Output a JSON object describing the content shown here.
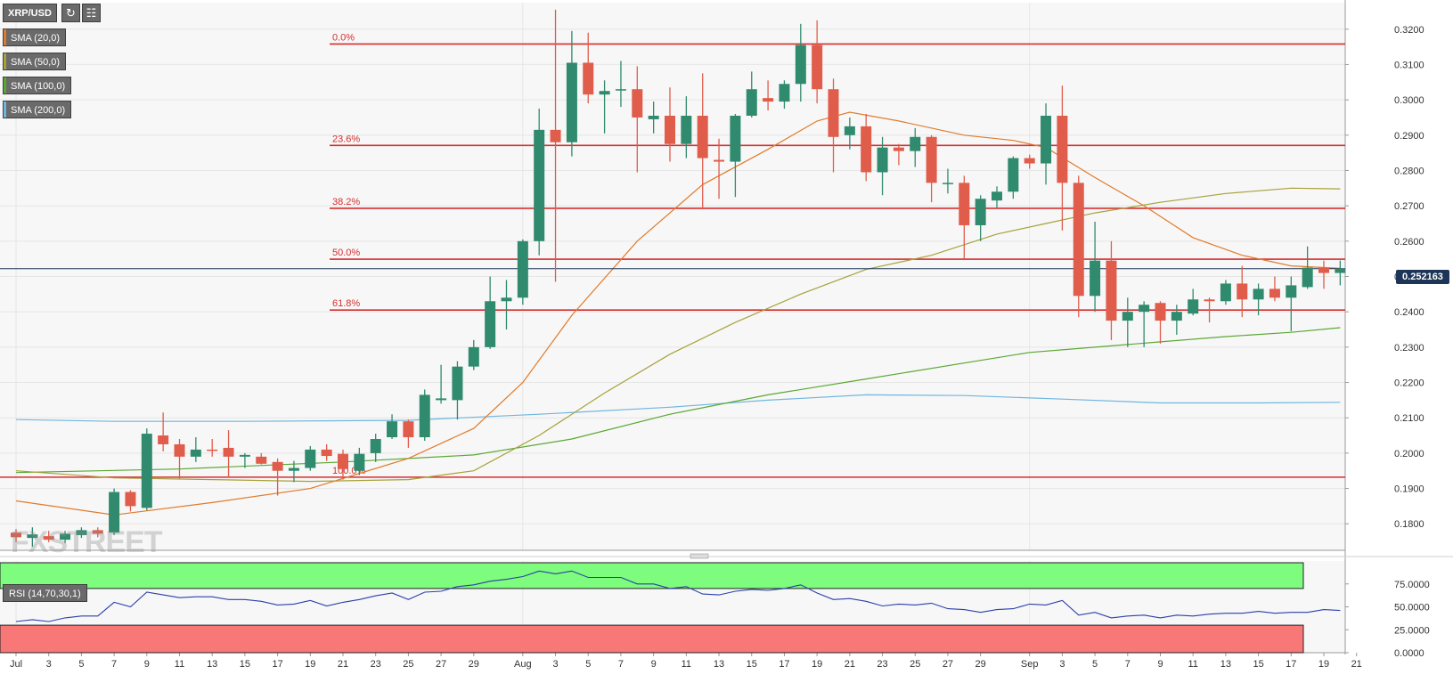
{
  "symbol": "XRP/USD",
  "toolbar": {
    "refresh_icon": "refresh-icon",
    "indicators_icon": "bar-chart-icon"
  },
  "indicators": [
    {
      "label": "SMA (20,0)",
      "color": "#e07b2b"
    },
    {
      "label": "SMA (50,0)",
      "color": "#a7a13a"
    },
    {
      "label": "SMA (100,0)",
      "color": "#5aa832"
    },
    {
      "label": "SMA (200,0)",
      "color": "#6fb6df"
    }
  ],
  "rsi": {
    "label": "RSI (14,70,30,1)",
    "overbought": 70,
    "oversold": 30,
    "ticks": [
      "75.0000",
      "50.0000",
      "25.0000",
      "0.0000"
    ]
  },
  "current_price": "0.252163",
  "watermark": "FXSTREET",
  "colors": {
    "up": "#2f8a6e",
    "down": "#e05c4b",
    "fib": "#d32f2f",
    "rsi_line": "#2b3fa8",
    "overbought_zone": "#7dfc7d",
    "oversold_zone": "#f87878"
  },
  "chart_data": {
    "type": "candlestick",
    "title": "XRP/USD",
    "ylim": [
      0.1725,
      0.3275
    ],
    "y_ticks": [
      "0.3200",
      "0.3100",
      "0.3000",
      "0.2900",
      "0.2800",
      "0.2700",
      "0.2600",
      "0.2500",
      "0.2400",
      "0.2300",
      "0.2200",
      "0.2100",
      "0.2000",
      "0.1900",
      "0.1800"
    ],
    "x_ticks": [
      {
        "day": 0,
        "label": "Jul"
      },
      {
        "day": 2,
        "label": "3"
      },
      {
        "day": 4,
        "label": "5"
      },
      {
        "day": 6,
        "label": "7"
      },
      {
        "day": 8,
        "label": "9"
      },
      {
        "day": 10,
        "label": "11"
      },
      {
        "day": 12,
        "label": "13"
      },
      {
        "day": 14,
        "label": "15"
      },
      {
        "day": 16,
        "label": "17"
      },
      {
        "day": 18,
        "label": "19"
      },
      {
        "day": 20,
        "label": "21"
      },
      {
        "day": 22,
        "label": "23"
      },
      {
        "day": 24,
        "label": "25"
      },
      {
        "day": 26,
        "label": "27"
      },
      {
        "day": 28,
        "label": "29"
      },
      {
        "day": 31,
        "label": "Aug"
      },
      {
        "day": 33,
        "label": "3"
      },
      {
        "day": 35,
        "label": "5"
      },
      {
        "day": 37,
        "label": "7"
      },
      {
        "day": 39,
        "label": "9"
      },
      {
        "day": 41,
        "label": "11"
      },
      {
        "day": 43,
        "label": "13"
      },
      {
        "day": 45,
        "label": "15"
      },
      {
        "day": 47,
        "label": "17"
      },
      {
        "day": 49,
        "label": "19"
      },
      {
        "day": 51,
        "label": "21"
      },
      {
        "day": 53,
        "label": "23"
      },
      {
        "day": 55,
        "label": "25"
      },
      {
        "day": 57,
        "label": "27"
      },
      {
        "day": 59,
        "label": "29"
      },
      {
        "day": 62,
        "label": "Sep"
      },
      {
        "day": 64,
        "label": "3"
      },
      {
        "day": 66,
        "label": "5"
      },
      {
        "day": 68,
        "label": "7"
      },
      {
        "day": 70,
        "label": "9"
      },
      {
        "day": 72,
        "label": "11"
      },
      {
        "day": 74,
        "label": "13"
      },
      {
        "day": 76,
        "label": "15"
      },
      {
        "day": 78,
        "label": "17"
      },
      {
        "day": 80,
        "label": "19"
      },
      {
        "day": 82,
        "label": "21"
      }
    ],
    "candles": [
      [
        0.1775,
        0.1785,
        0.1748,
        0.1762
      ],
      [
        0.176,
        0.179,
        0.1735,
        0.177
      ],
      [
        0.1765,
        0.178,
        0.1748,
        0.1755
      ],
      [
        0.1755,
        0.178,
        0.1745,
        0.1772
      ],
      [
        0.1768,
        0.179,
        0.176,
        0.1782
      ],
      [
        0.1782,
        0.179,
        0.1762,
        0.1772
      ],
      [
        0.1775,
        0.19,
        0.1768,
        0.189
      ],
      [
        0.189,
        0.1895,
        0.1835,
        0.185
      ],
      [
        0.1845,
        0.207,
        0.1838,
        0.2055
      ],
      [
        0.205,
        0.2115,
        0.2005,
        0.2025
      ],
      [
        0.2025,
        0.204,
        0.1928,
        0.199
      ],
      [
        0.199,
        0.2045,
        0.1975,
        0.201
      ],
      [
        0.201,
        0.204,
        0.199,
        0.2008
      ],
      [
        0.2015,
        0.2065,
        0.193,
        0.199
      ],
      [
        0.199,
        0.2,
        0.1958,
        0.1995
      ],
      [
        0.199,
        0.2,
        0.1968,
        0.197
      ],
      [
        0.1975,
        0.1985,
        0.188,
        0.195
      ],
      [
        0.195,
        0.1978,
        0.1918,
        0.1958
      ],
      [
        0.1958,
        0.202,
        0.195,
        0.201
      ],
      [
        0.201,
        0.2025,
        0.1978,
        0.1992
      ],
      [
        0.1998,
        0.201,
        0.1925,
        0.1955
      ],
      [
        0.195,
        0.2015,
        0.1938,
        0.1998
      ],
      [
        0.2,
        0.2055,
        0.1975,
        0.204
      ],
      [
        0.2045,
        0.211,
        0.204,
        0.209
      ],
      [
        0.209,
        0.2095,
        0.2015,
        0.2045
      ],
      [
        0.2045,
        0.218,
        0.2035,
        0.2165
      ],
      [
        0.215,
        0.225,
        0.214,
        0.2155
      ],
      [
        0.215,
        0.226,
        0.2095,
        0.2245
      ],
      [
        0.2245,
        0.232,
        0.2235,
        0.23
      ],
      [
        0.23,
        0.25,
        0.2295,
        0.243
      ],
      [
        0.243,
        0.249,
        0.235,
        0.244
      ],
      [
        0.244,
        0.2605,
        0.242,
        0.26
      ],
      [
        0.26,
        0.2975,
        0.256,
        0.2915
      ],
      [
        0.2915,
        0.3255,
        0.2485,
        0.288
      ],
      [
        0.288,
        0.3195,
        0.284,
        0.3105
      ],
      [
        0.3105,
        0.319,
        0.299,
        0.3015
      ],
      [
        0.3015,
        0.3055,
        0.2905,
        0.3025
      ],
      [
        0.303,
        0.311,
        0.298,
        0.303
      ],
      [
        0.303,
        0.3095,
        0.2795,
        0.295
      ],
      [
        0.2945,
        0.2995,
        0.2905,
        0.2955
      ],
      [
        0.2955,
        0.3035,
        0.2825,
        0.2875
      ],
      [
        0.2875,
        0.301,
        0.2835,
        0.2955
      ],
      [
        0.2955,
        0.3075,
        0.269,
        0.2835
      ],
      [
        0.283,
        0.289,
        0.272,
        0.2825
      ],
      [
        0.2825,
        0.296,
        0.2725,
        0.2955
      ],
      [
        0.2955,
        0.308,
        0.295,
        0.303
      ],
      [
        0.3005,
        0.3055,
        0.297,
        0.2995
      ],
      [
        0.2995,
        0.3055,
        0.2975,
        0.3045
      ],
      [
        0.3045,
        0.3215,
        0.2995,
        0.3155
      ],
      [
        0.3155,
        0.3225,
        0.299,
        0.303
      ],
      [
        0.303,
        0.306,
        0.2795,
        0.2895
      ],
      [
        0.29,
        0.295,
        0.286,
        0.2925
      ],
      [
        0.2925,
        0.296,
        0.277,
        0.2795
      ],
      [
        0.2795,
        0.2895,
        0.273,
        0.2865
      ],
      [
        0.2865,
        0.2875,
        0.2815,
        0.2855
      ],
      [
        0.2855,
        0.292,
        0.281,
        0.2895
      ],
      [
        0.2895,
        0.29,
        0.271,
        0.2765
      ],
      [
        0.2765,
        0.2805,
        0.2735,
        0.2765
      ],
      [
        0.2765,
        0.2785,
        0.255,
        0.2645
      ],
      [
        0.2645,
        0.273,
        0.26,
        0.272
      ],
      [
        0.2715,
        0.2755,
        0.2695,
        0.274
      ],
      [
        0.274,
        0.284,
        0.272,
        0.2835
      ],
      [
        0.2835,
        0.2845,
        0.2805,
        0.282
      ],
      [
        0.282,
        0.299,
        0.276,
        0.2955
      ],
      [
        0.2955,
        0.304,
        0.263,
        0.2765
      ],
      [
        0.2765,
        0.2785,
        0.2385,
        0.2445
      ],
      [
        0.2445,
        0.2655,
        0.24,
        0.2545
      ],
      [
        0.2545,
        0.26,
        0.232,
        0.2375
      ],
      [
        0.2375,
        0.244,
        0.23,
        0.24
      ],
      [
        0.24,
        0.243,
        0.23,
        0.242
      ],
      [
        0.2425,
        0.243,
        0.231,
        0.2375
      ],
      [
        0.2375,
        0.242,
        0.2335,
        0.24
      ],
      [
        0.2395,
        0.2465,
        0.239,
        0.2435
      ],
      [
        0.2435,
        0.244,
        0.237,
        0.243
      ],
      [
        0.243,
        0.249,
        0.242,
        0.248
      ],
      [
        0.248,
        0.253,
        0.2385,
        0.2435
      ],
      [
        0.2435,
        0.248,
        0.239,
        0.2465
      ],
      [
        0.2465,
        0.25,
        0.243,
        0.244
      ],
      [
        0.244,
        0.25,
        0.2345,
        0.2475
      ],
      [
        0.247,
        0.2585,
        0.2465,
        0.2525
      ],
      [
        0.2525,
        0.2545,
        0.2465,
        0.251
      ],
      [
        0.251,
        0.2545,
        0.2475,
        0.2522
      ]
    ],
    "sma20": [
      [
        0,
        0.1865
      ],
      [
        6,
        0.1825
      ],
      [
        12,
        0.186
      ],
      [
        18,
        0.19
      ],
      [
        24,
        0.1985
      ],
      [
        28,
        0.207
      ],
      [
        31,
        0.22
      ],
      [
        34,
        0.239
      ],
      [
        38,
        0.26
      ],
      [
        42,
        0.276
      ],
      [
        46,
        0.286
      ],
      [
        49,
        0.294
      ],
      [
        51,
        0.2965
      ],
      [
        54,
        0.294
      ],
      [
        58,
        0.29
      ],
      [
        61,
        0.2885
      ],
      [
        63,
        0.2865
      ],
      [
        66,
        0.278
      ],
      [
        69,
        0.27
      ],
      [
        72,
        0.261
      ],
      [
        75,
        0.256
      ],
      [
        78,
        0.253
      ],
      [
        81,
        0.2523
      ]
    ],
    "sma50": [
      [
        0,
        0.195
      ],
      [
        6,
        0.193
      ],
      [
        12,
        0.1925
      ],
      [
        18,
        0.192
      ],
      [
        24,
        0.1925
      ],
      [
        28,
        0.195
      ],
      [
        32,
        0.205
      ],
      [
        36,
        0.217
      ],
      [
        40,
        0.228
      ],
      [
        44,
        0.237
      ],
      [
        48,
        0.245
      ],
      [
        52,
        0.252
      ],
      [
        56,
        0.256
      ],
      [
        60,
        0.262
      ],
      [
        63,
        0.265
      ],
      [
        66,
        0.268
      ],
      [
        70,
        0.271
      ],
      [
        74,
        0.2735
      ],
      [
        78,
        0.275
      ],
      [
        81,
        0.2748
      ]
    ],
    "sma100": [
      [
        0,
        0.1945
      ],
      [
        10,
        0.1955
      ],
      [
        20,
        0.1975
      ],
      [
        28,
        0.1995
      ],
      [
        34,
        0.204
      ],
      [
        40,
        0.211
      ],
      [
        46,
        0.2165
      ],
      [
        52,
        0.221
      ],
      [
        58,
        0.2255
      ],
      [
        62,
        0.2285
      ],
      [
        66,
        0.23
      ],
      [
        70,
        0.2315
      ],
      [
        74,
        0.233
      ],
      [
        78,
        0.2342
      ],
      [
        81,
        0.2355
      ]
    ],
    "sma200": [
      [
        0,
        0.2095
      ],
      [
        6,
        0.209
      ],
      [
        14,
        0.209
      ],
      [
        24,
        0.2093
      ],
      [
        32,
        0.211
      ],
      [
        40,
        0.213
      ],
      [
        46,
        0.215
      ],
      [
        52,
        0.2165
      ],
      [
        58,
        0.2163
      ],
      [
        64,
        0.2153
      ],
      [
        70,
        0.2142
      ],
      [
        76,
        0.2142
      ],
      [
        81,
        0.2144
      ]
    ],
    "fibonacci": [
      {
        "label": "0.0%",
        "value": 0.3158
      },
      {
        "label": "23.6%",
        "value": 0.2871
      },
      {
        "label": "38.2%",
        "value": 0.2693
      },
      {
        "label": "50.0%",
        "value": 0.2549
      },
      {
        "label": "61.8%",
        "value": 0.2405
      },
      {
        "label": "100.0%",
        "value": 0.1932
      }
    ],
    "rsi_values": [
      34,
      36,
      34,
      38,
      40,
      40,
      55,
      50,
      66,
      63,
      60,
      61,
      61,
      58,
      58,
      56,
      52,
      53,
      57,
      51,
      55,
      58,
      62,
      65,
      58,
      66,
      67,
      72,
      74,
      78,
      80,
      83,
      89,
      86,
      89,
      82,
      82,
      82,
      75,
      75,
      70,
      72,
      64,
      63,
      67,
      69,
      68,
      70,
      74,
      65,
      58,
      59,
      56,
      51,
      53,
      52,
      54,
      48,
      47,
      44,
      47,
      48,
      53,
      52,
      57,
      41,
      44,
      38,
      40,
      41,
      38,
      41,
      40,
      42,
      43,
      43,
      45,
      43,
      44,
      44,
      47,
      46
    ]
  }
}
